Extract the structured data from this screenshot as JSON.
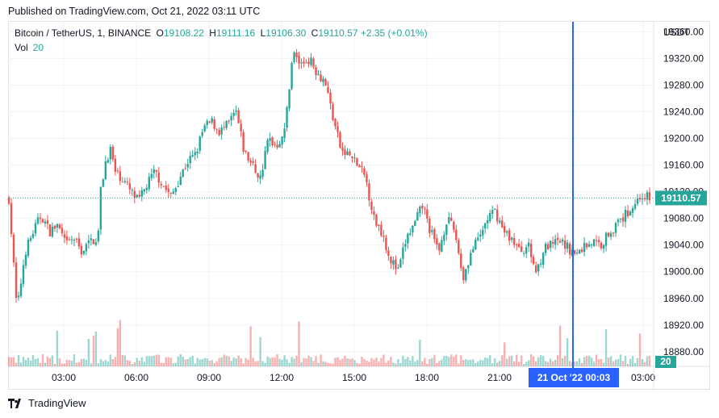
{
  "header": {
    "published": "Published on TradingView.com, Oct 21, 2022 03:11 UTC"
  },
  "legend": {
    "symbol": "Bitcoin / TetherUS, 1, BINANCE",
    "o_label": "O",
    "o_value": "19108.22",
    "h_label": "H",
    "h_value": "19111.16",
    "l_label": "L",
    "l_value": "19106.30",
    "c_label": "C",
    "c_value": "19110.57",
    "change": "+2.35 (+0.01%)",
    "vol_label": "Vol",
    "vol_value": "20"
  },
  "colors": {
    "up": "#26a69a",
    "down": "#ef5350",
    "crosshair": "#2962ff",
    "price_tag": "#26a69a"
  },
  "chart_data": {
    "type": "candlestick",
    "title": "Bitcoin / TetherUS, 1, BINANCE",
    "currency": "USDT",
    "x_ticks": [
      "03:00",
      "06:00",
      "09:00",
      "12:00",
      "15:00",
      "18:00",
      "21:00",
      "03:00"
    ],
    "y_ticks": [
      19360,
      19320,
      19280,
      19240,
      19200,
      19160,
      19120,
      19080,
      19040,
      19000,
      18960,
      18920,
      18880
    ],
    "ylim": [
      18858,
      19375
    ],
    "last_price": "19110.57",
    "last_price_value": 19110.57,
    "volume_value": "20",
    "crosshair_label": "21 Oct '22   00:03",
    "price_path": [
      [
        0,
        19110
      ],
      [
        1,
        18940
      ],
      [
        2,
        19030
      ],
      [
        3,
        19060
      ],
      [
        4,
        19085
      ],
      [
        5,
        19060
      ],
      [
        6,
        19070
      ],
      [
        7,
        19040
      ],
      [
        8,
        19050
      ],
      [
        9,
        19030
      ],
      [
        10,
        19045
      ],
      [
        11,
        19052
      ],
      [
        11.3,
        19120
      ],
      [
        12,
        19170
      ],
      [
        12.6,
        19185
      ],
      [
        13,
        19150
      ],
      [
        14,
        19140
      ],
      [
        15,
        19120
      ],
      [
        16,
        19105
      ],
      [
        17,
        19130
      ],
      [
        18,
        19150
      ],
      [
        19,
        19130
      ],
      [
        20,
        19112
      ],
      [
        21,
        19140
      ],
      [
        22,
        19165
      ],
      [
        23,
        19175
      ],
      [
        24,
        19215
      ],
      [
        25,
        19225
      ],
      [
        26,
        19210
      ],
      [
        27,
        19220
      ],
      [
        28,
        19240
      ],
      [
        29,
        19180
      ],
      [
        30,
        19160
      ],
      [
        31,
        19140
      ],
      [
        32,
        19200
      ],
      [
        33,
        19190
      ],
      [
        34,
        19210
      ],
      [
        35,
        19330
      ],
      [
        36,
        19310
      ],
      [
        37,
        19320
      ],
      [
        38,
        19300
      ],
      [
        39,
        19285
      ],
      [
        40,
        19230
      ],
      [
        41,
        19180
      ],
      [
        42,
        19175
      ],
      [
        43,
        19160
      ],
      [
        44,
        19140
      ],
      [
        45,
        19080
      ],
      [
        46,
        19060
      ],
      [
        47,
        19020
      ],
      [
        48,
        19000
      ],
      [
        49,
        19050
      ],
      [
        50,
        19070
      ],
      [
        51,
        19100
      ],
      [
        52,
        19060
      ],
      [
        53,
        19030
      ],
      [
        54,
        19080
      ],
      [
        55,
        19060
      ],
      [
        56,
        18990
      ],
      [
        57,
        19030
      ],
      [
        58,
        19050
      ],
      [
        59,
        19080
      ],
      [
        60,
        19090
      ],
      [
        61,
        19060
      ],
      [
        62,
        19050
      ],
      [
        63,
        19030
      ],
      [
        64,
        19040
      ],
      [
        65,
        19000
      ],
      [
        66,
        19035
      ],
      [
        67,
        19040
      ],
      [
        68,
        19045
      ],
      [
        69,
        19035
      ],
      [
        70,
        19025
      ],
      [
        71,
        19040
      ],
      [
        72,
        19045
      ],
      [
        73,
        19040
      ],
      [
        74,
        19060
      ],
      [
        75,
        19070
      ],
      [
        76,
        19085
      ],
      [
        77,
        19100
      ],
      [
        78,
        19115
      ],
      [
        79,
        19110
      ]
    ]
  },
  "footer": {
    "brand": "TradingView"
  }
}
